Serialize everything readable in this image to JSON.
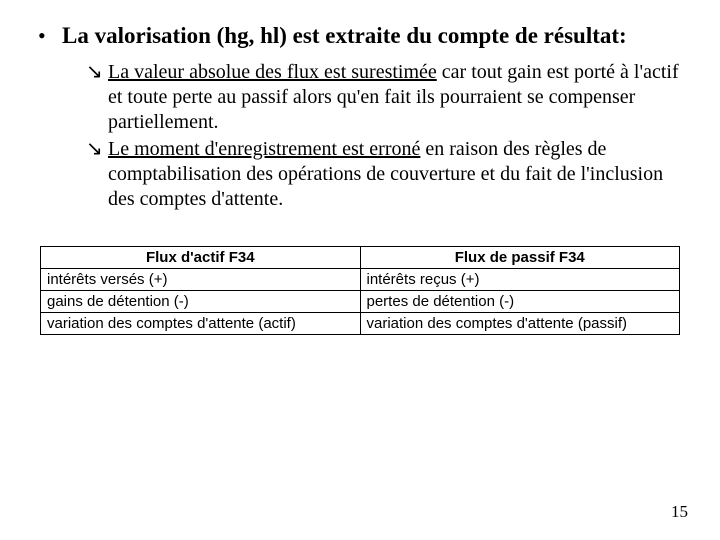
{
  "document": {
    "heading": "La valorisation (hg, hl) est extraite du compte de résultat:",
    "subitems": [
      {
        "underlined": "La valeur absolue des flux est surestimée",
        "rest": " car tout gain est porté à l'actif et toute perte au passif alors qu'en fait ils pourraient se compenser partiellement."
      },
      {
        "underlined": "Le moment d'enregistrement est erroné",
        "rest": " en raison des règles de comptabilisation des opérations de couverture et du fait de l'inclusion des comptes d'attente."
      }
    ],
    "table": {
      "columns": [
        "Flux d'actif F34",
        "Flux de passif F34"
      ],
      "rows": [
        [
          "intérêts versés (+)",
          "intérêts reçus (+)"
        ],
        [
          "gains de détention (-)",
          "pertes de détention (-)"
        ],
        [
          "variation des comptes d'attente (actif)",
          "variation des comptes d'attente (passif)"
        ]
      ],
      "column_widths": [
        "50%",
        "50%"
      ],
      "border_color": "#000000",
      "header_font_weight": "bold",
      "font_family": "Arial"
    },
    "page_number": "15",
    "bullet_glyph": "•",
    "arrow_glyph": "↘",
    "background_color": "#ffffff",
    "text_color": "#000000"
  }
}
